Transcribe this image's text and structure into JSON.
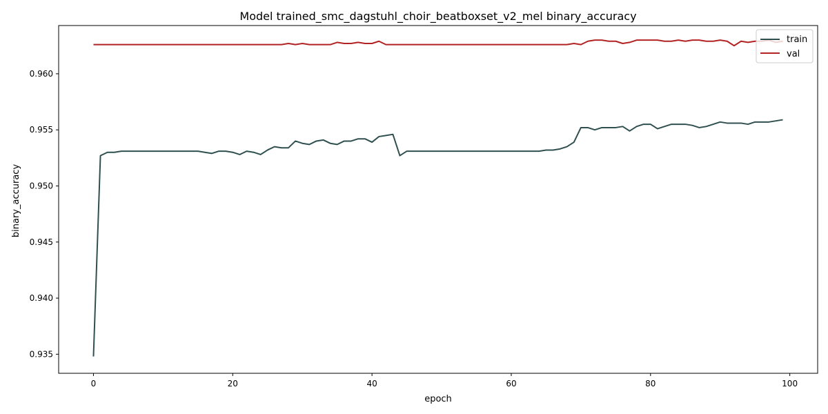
{
  "chart_data": {
    "type": "line",
    "title": "Model trained_smc_dagstuhl_choir_beatboxset_v2_mel binary_accuracy",
    "xlabel": "epoch",
    "ylabel": "binary_accuracy",
    "xlim": [
      -5,
      104
    ],
    "ylim": [
      0.9333,
      0.9643
    ],
    "xticks": [
      0,
      20,
      40,
      60,
      80,
      100
    ],
    "yticks": [
      0.935,
      0.94,
      0.945,
      0.95,
      0.955,
      0.96
    ],
    "ytick_labels": [
      "0.935",
      "0.940",
      "0.945",
      "0.950",
      "0.955",
      "0.960"
    ],
    "xtick_labels": [
      "0",
      "20",
      "40",
      "60",
      "80",
      "100"
    ],
    "legend_position": "top-right",
    "grid": false,
    "series": [
      {
        "name": "train",
        "color": "#2f4f4f",
        "values": [
          0.9348,
          0.9527,
          0.953,
          0.953,
          0.9531,
          0.9531,
          0.9531,
          0.9531,
          0.9531,
          0.9531,
          0.9531,
          0.9531,
          0.9531,
          0.9531,
          0.9531,
          0.9531,
          0.953,
          0.9529,
          0.9531,
          0.9531,
          0.953,
          0.9528,
          0.9531,
          0.953,
          0.9528,
          0.9532,
          0.9535,
          0.9534,
          0.9534,
          0.954,
          0.9538,
          0.9537,
          0.954,
          0.9541,
          0.9538,
          0.9537,
          0.954,
          0.954,
          0.9542,
          0.9542,
          0.9539,
          0.9544,
          0.9545,
          0.9546,
          0.9527,
          0.9531,
          0.9531,
          0.9531,
          0.9531,
          0.9531,
          0.9531,
          0.9531,
          0.9531,
          0.9531,
          0.9531,
          0.9531,
          0.9531,
          0.9531,
          0.9531,
          0.9531,
          0.9531,
          0.9531,
          0.9531,
          0.9531,
          0.9531,
          0.9532,
          0.9532,
          0.9533,
          0.9535,
          0.9539,
          0.9552,
          0.9552,
          0.955,
          0.9552,
          0.9552,
          0.9552,
          0.9553,
          0.9549,
          0.9553,
          0.9555,
          0.9555,
          0.9551,
          0.9553,
          0.9555,
          0.9555,
          0.9555,
          0.9554,
          0.9552,
          0.9553,
          0.9555,
          0.9557,
          0.9556,
          0.9556,
          0.9556,
          0.9555,
          0.9557,
          0.9557,
          0.9557,
          0.9558,
          0.9559
        ]
      },
      {
        "name": "val",
        "color": "#b22222",
        "values": [
          0.9626,
          0.9626,
          0.9626,
          0.9626,
          0.9626,
          0.9626,
          0.9626,
          0.9626,
          0.9626,
          0.9626,
          0.9626,
          0.9626,
          0.9626,
          0.9626,
          0.9626,
          0.9626,
          0.9626,
          0.9626,
          0.9626,
          0.9626,
          0.9626,
          0.9626,
          0.9626,
          0.9626,
          0.9626,
          0.9626,
          0.9626,
          0.9626,
          0.9627,
          0.9626,
          0.9627,
          0.9626,
          0.9626,
          0.9626,
          0.9626,
          0.9628,
          0.9627,
          0.9627,
          0.9628,
          0.9627,
          0.9627,
          0.9629,
          0.9626,
          0.9626,
          0.9626,
          0.9626,
          0.9626,
          0.9626,
          0.9626,
          0.9626,
          0.9626,
          0.9626,
          0.9626,
          0.9626,
          0.9626,
          0.9626,
          0.9626,
          0.9626,
          0.9626,
          0.9626,
          0.9626,
          0.9626,
          0.9626,
          0.9626,
          0.9626,
          0.9626,
          0.9626,
          0.9626,
          0.9626,
          0.9627,
          0.9626,
          0.9629,
          0.963,
          0.963,
          0.9629,
          0.9629,
          0.9627,
          0.9628,
          0.963,
          0.963,
          0.963,
          0.963,
          0.9629,
          0.9629,
          0.963,
          0.9629,
          0.963,
          0.963,
          0.9629,
          0.9629,
          0.963,
          0.9629,
          0.9625,
          0.9629,
          0.9628,
          0.9629,
          0.9629,
          0.963,
          0.9628,
          0.9629
        ]
      }
    ]
  }
}
